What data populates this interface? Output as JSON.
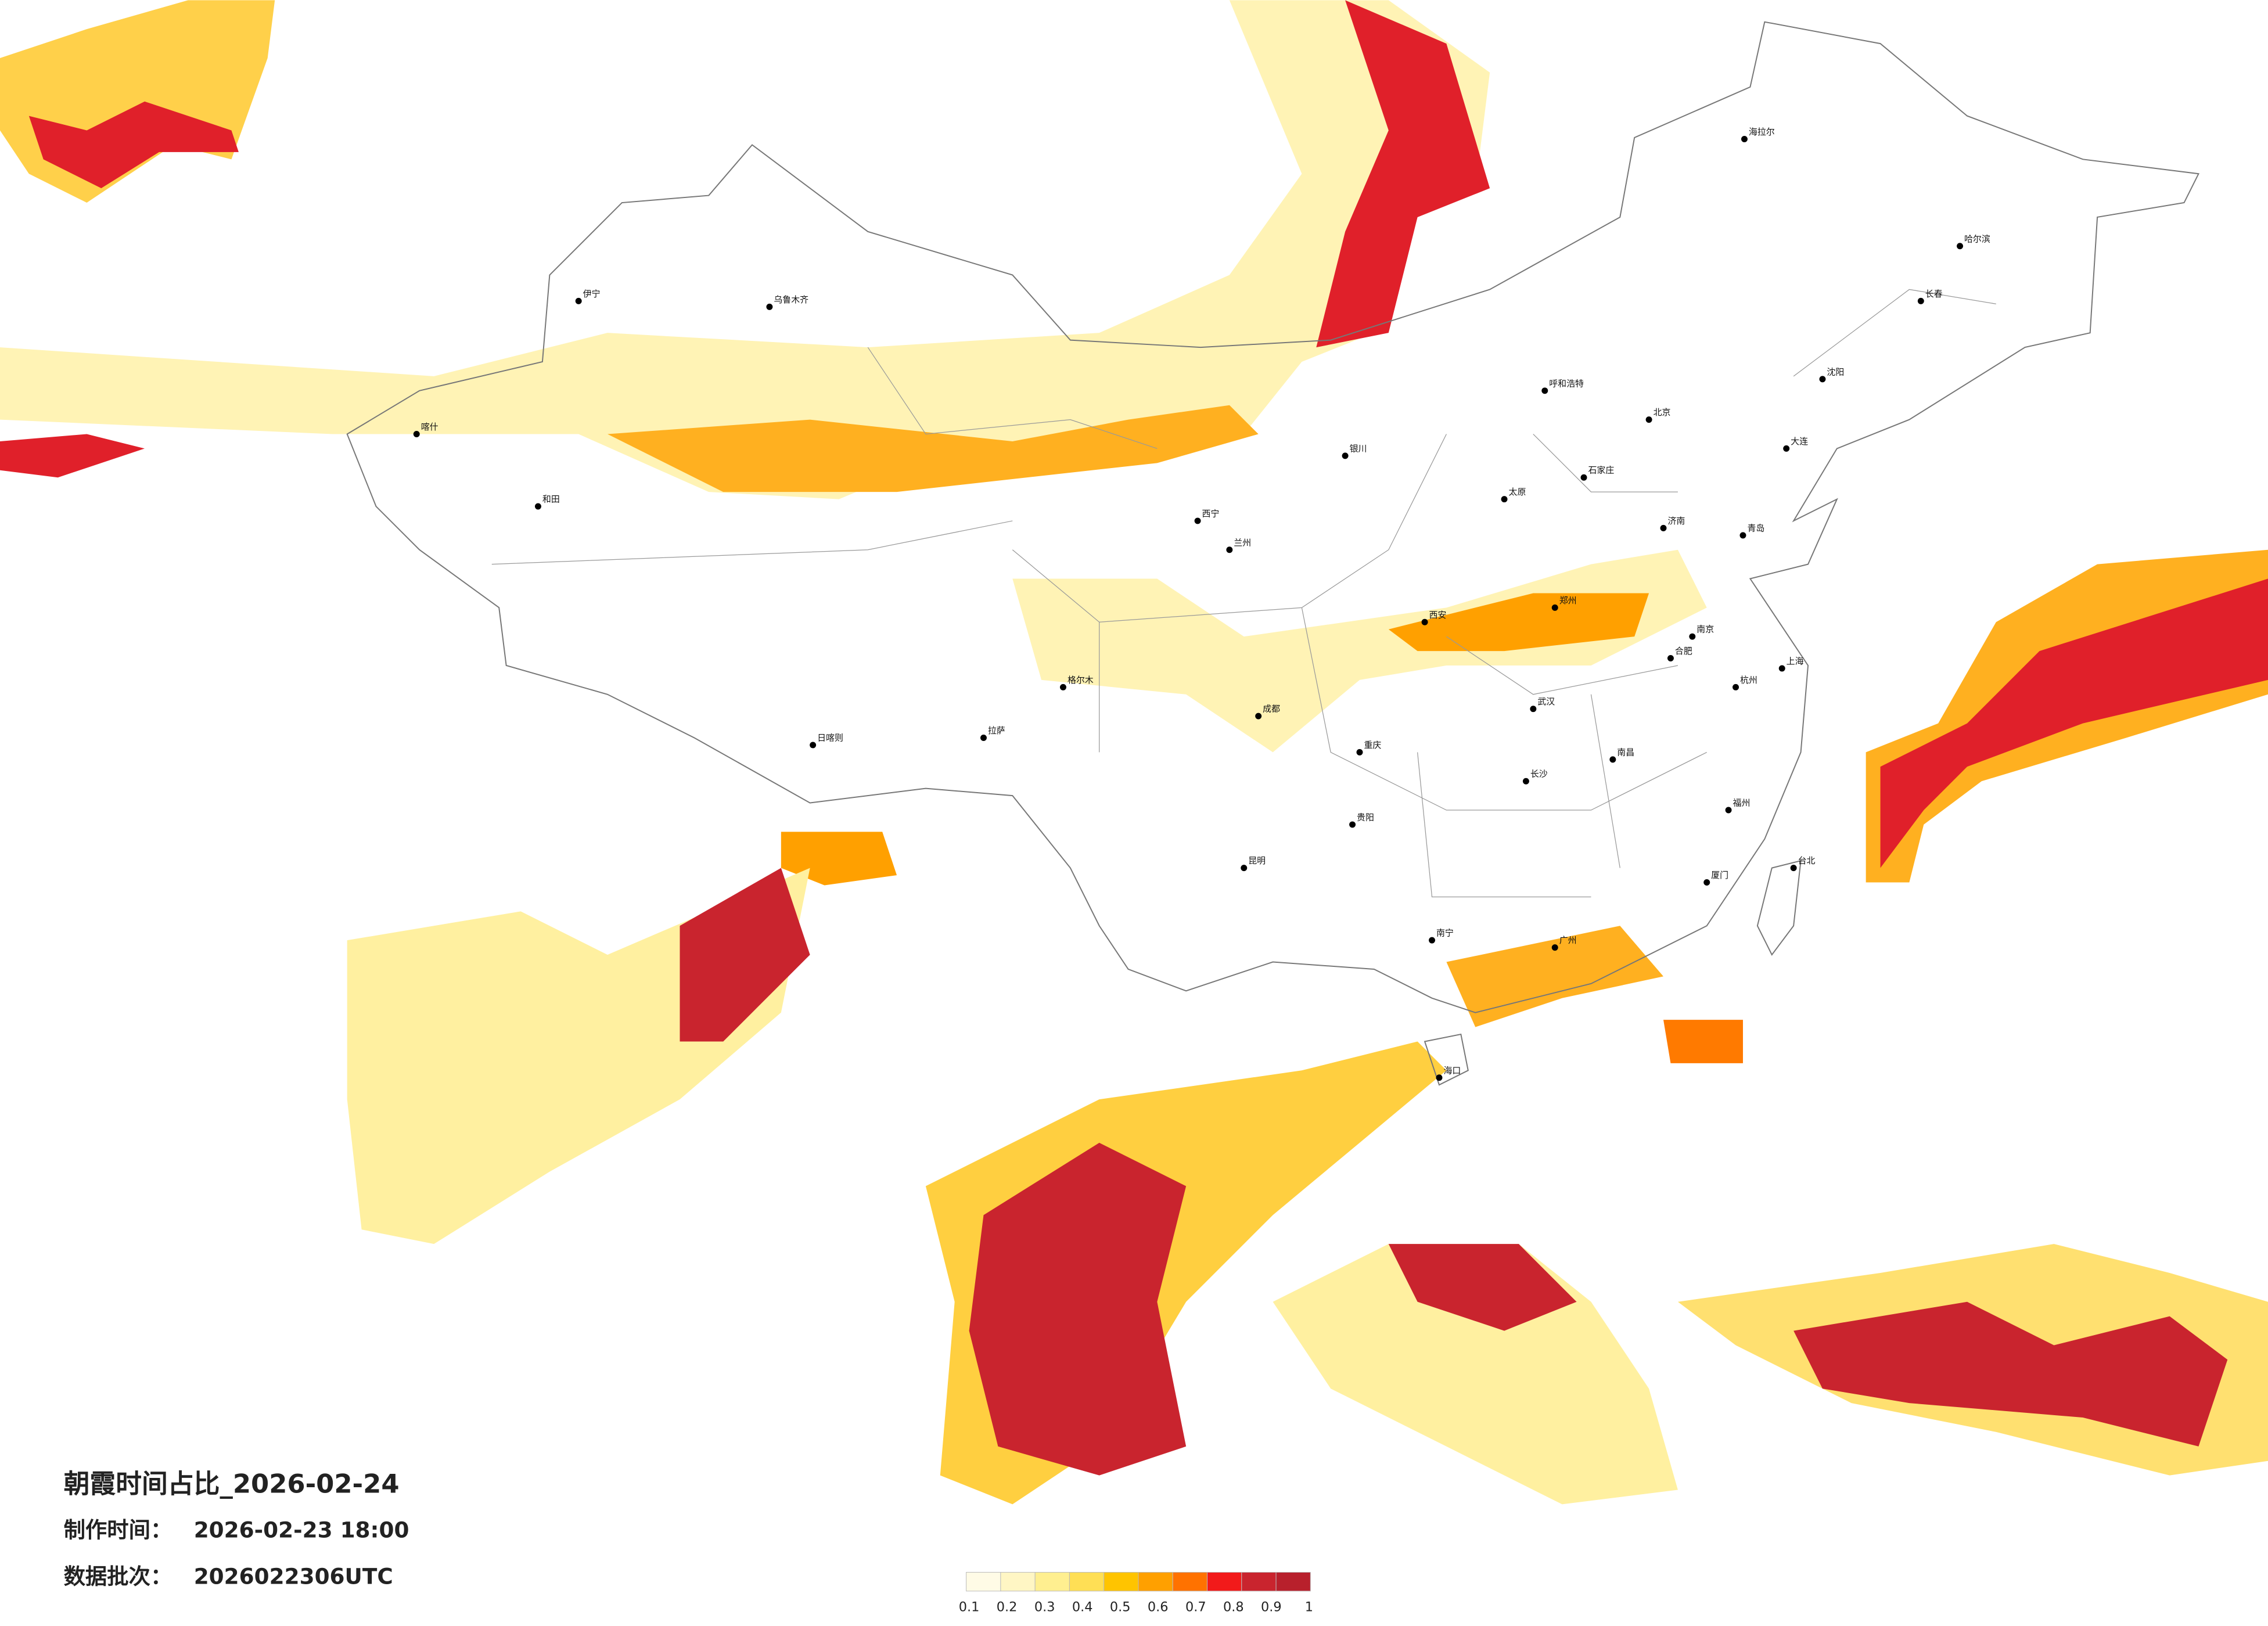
{
  "title": "朝霞时间占比_2026-02-24",
  "info": [
    {
      "label": "制作时间：",
      "value": "2026-02-23 18:00"
    },
    {
      "label": "数据批次：",
      "value": "2026022306UTC"
    }
  ],
  "legend": {
    "colors": [
      "#fffbe6",
      "#fff6c4",
      "#ffef90",
      "#ffdf55",
      "#ffc400",
      "#ffa000",
      "#ff7200",
      "#f21a1a",
      "#c9242e",
      "#b8202c"
    ],
    "ticks": [
      0.1,
      0.2,
      0.3,
      0.4,
      0.5,
      0.6,
      0.7,
      0.8,
      0.9,
      1
    ]
  },
  "cities": [
    "北京",
    "呼和浩特",
    "哈尔滨",
    "长春",
    "沈阳",
    "乌鲁木齐",
    "拉萨",
    "西宁",
    "兰州",
    "银川",
    "成都",
    "重庆",
    "贵阳",
    "昆明",
    "南宁",
    "广州",
    "福州",
    "杭州",
    "南京",
    "上海",
    "武汉",
    "长沙",
    "南昌",
    "合肥",
    "郑州",
    "济南",
    "石家庄",
    "太原",
    "西安",
    "海口",
    "和田",
    "伊宁",
    "喀什",
    "日喀则",
    "格尔木",
    "大连",
    "青岛",
    "厦门",
    "台北",
    "海拉尔"
  ]
}
